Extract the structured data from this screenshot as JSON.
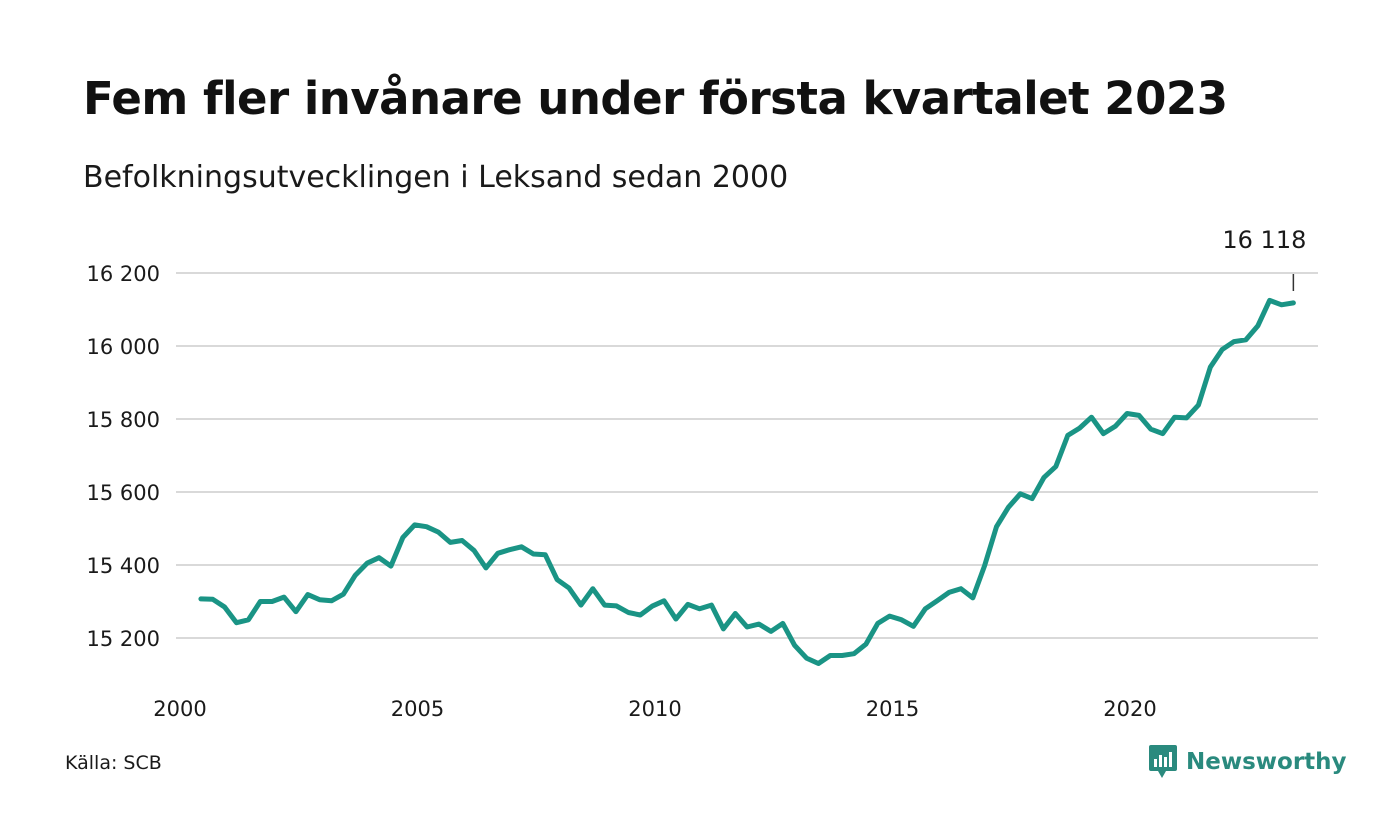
{
  "header": {
    "title": "Fem fler invånare under första kvartalet 2023",
    "subtitle": "Befolkningsutvecklingen i Leksand sedan 2000"
  },
  "footer": {
    "source": "Källa: SCB",
    "brand": "Newsworthy",
    "brand_icon": "chart-bubble-icon"
  },
  "colors": {
    "line": "#1a9485",
    "grid": "#d9d9d9",
    "brand": "#2a8a7e"
  },
  "chart_data": {
    "type": "line",
    "title": "Fem fler invånare under första kvartalet 2023",
    "subtitle": "Befolkningsutvecklingen i Leksand sedan 2000",
    "xlabel": "",
    "ylabel": "",
    "x_ticks": [
      2000,
      2005,
      2010,
      2015,
      2020
    ],
    "y_ticks": [
      15200,
      15400,
      15600,
      15800,
      16000,
      16200
    ],
    "y_tick_labels": [
      "15 200",
      "15 400",
      "15 600",
      "15 800",
      "16 000",
      "16 200"
    ],
    "xlim": [
      2000,
      2023.75
    ],
    "ylim": [
      15100,
      16200
    ],
    "grid": true,
    "last_value_label": "16 118",
    "series": [
      {
        "x": [
          2000.25,
          2000.5,
          2000.75,
          2001.0,
          2001.25,
          2001.5,
          2001.75,
          2002.0,
          2002.25,
          2002.5,
          2002.75,
          2003.0,
          2003.25,
          2003.5,
          2003.75,
          2004.0,
          2004.25,
          2004.5,
          2004.75,
          2005.0,
          2005.25,
          2005.5,
          2005.75,
          2006.0,
          2006.25,
          2006.5,
          2006.75,
          2007.0,
          2007.25,
          2007.5,
          2007.75,
          2008.0,
          2008.25,
          2008.5,
          2008.75,
          2009.0,
          2009.25,
          2009.5,
          2009.75,
          2010.0,
          2010.25,
          2010.5,
          2010.75,
          2011.0,
          2011.25,
          2011.5,
          2011.75,
          2012.0,
          2012.25,
          2012.5,
          2012.75,
          2013.0,
          2013.25,
          2013.5,
          2013.75,
          2014.0,
          2014.25,
          2014.5,
          2014.75,
          2015.0,
          2015.25,
          2015.5,
          2015.75,
          2016.0,
          2016.25,
          2016.5,
          2016.75,
          2017.0,
          2017.25,
          2017.5,
          2017.75,
          2018.0,
          2018.25,
          2018.5,
          2018.75,
          2019.0,
          2019.25,
          2019.5,
          2019.75,
          2020.0,
          2020.25,
          2020.5,
          2020.75,
          2021.0,
          2021.25,
          2021.5,
          2021.75,
          2022.0,
          2022.25,
          2022.5,
          2022.75,
          2023.0,
          2023.25
        ],
        "values": [
          15307,
          15306,
          15285,
          15242,
          15250,
          15300,
          15300,
          15312,
          15272,
          15319,
          15305,
          15302,
          15320,
          15372,
          15405,
          15420,
          15397,
          15475,
          15510,
          15505,
          15490,
          15462,
          15467,
          15440,
          15392,
          15432,
          15442,
          15450,
          15430,
          15428,
          15360,
          15337,
          15290,
          15335,
          15290,
          15288,
          15270,
          15263,
          15287,
          15302,
          15252,
          15292,
          15280,
          15290,
          15225,
          15267,
          15230,
          15238,
          15218,
          15240,
          15180,
          15145,
          15130,
          15152,
          15152,
          15157,
          15183,
          15240,
          15260,
          15250,
          15232,
          15280,
          15302,
          15325,
          15335,
          15310,
          15398,
          15505,
          15558,
          15595,
          15582,
          15640,
          15670,
          15755,
          15775,
          15805,
          15760,
          15780,
          15815,
          15810,
          15772,
          15760,
          15805,
          15803,
          15838,
          15942,
          15990,
          16012,
          16017,
          16055,
          16125,
          16113,
          16118
        ]
      }
    ]
  }
}
